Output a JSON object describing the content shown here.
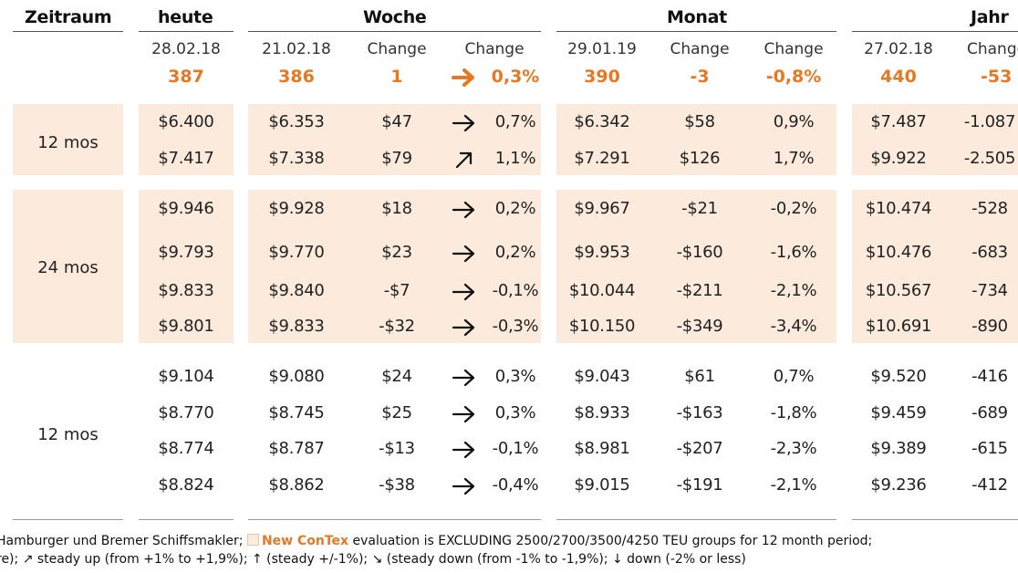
{
  "headers": {
    "zeitraum": "Zeitraum",
    "heute": "heute",
    "woche": "Woche",
    "monat": "Monat",
    "jahr": "Jahr"
  },
  "subheaders": {
    "heute_date": "28.02.18",
    "woche_date": "21.02.18",
    "woche_change1": "Change",
    "woche_change2": "Change",
    "monat_date": "29.01.19",
    "monat_change1": "Change",
    "monat_change2": "Change",
    "jahr_date": "27.02.18",
    "jahr_change1": "Change"
  },
  "index_row": {
    "heute": "387",
    "woche": "386",
    "woche_change": "1",
    "woche_pct": "0,3%",
    "monat": "390",
    "monat_change": "-3",
    "monat_pct": "-0,8%",
    "jahr": "440",
    "jahr_change": "-53"
  },
  "groups": [
    {
      "label": "12 mos",
      "rows": [
        {
          "heute": "$6.400",
          "woche": "$6.353",
          "wchg": "$47",
          "arrow": "right",
          "wpct": "0,7%",
          "monat": "$6.342",
          "mchg": "$58",
          "mpct": "0,9%",
          "jahr": "$7.487",
          "jchg": "-1.087"
        },
        {
          "heute": "$7.417",
          "woche": "$7.338",
          "wchg": "$79",
          "arrow": "up-right",
          "wpct": "1,1%",
          "monat": "$7.291",
          "mchg": "$126",
          "mpct": "1,7%",
          "jahr": "$9.922",
          "jchg": "-2.505"
        }
      ]
    },
    {
      "label": "24 mos",
      "rows": [
        {
          "heute": "$9.946",
          "woche": "$9.928",
          "wchg": "$18",
          "arrow": "right",
          "wpct": "0,2%",
          "monat": "$9.967",
          "mchg": "-$21",
          "mpct": "-0,2%",
          "jahr": "$10.474",
          "jchg": "-528"
        },
        {
          "heute": "$9.793",
          "woche": "$9.770",
          "wchg": "$23",
          "arrow": "right",
          "wpct": "0,2%",
          "monat": "$9.953",
          "mchg": "-$160",
          "mpct": "-1,6%",
          "jahr": "$10.476",
          "jchg": "-683"
        },
        {
          "heute": "$9.833",
          "woche": "$9.840",
          "wchg": "-$7",
          "arrow": "right",
          "wpct": "-0,1%",
          "monat": "$10.044",
          "mchg": "-$211",
          "mpct": "-2,1%",
          "jahr": "$10.567",
          "jchg": "-734"
        },
        {
          "heute": "$9.801",
          "woche": "$9.833",
          "wchg": "-$32",
          "arrow": "right",
          "wpct": "-0,3%",
          "monat": "$10.150",
          "mchg": "-$349",
          "mpct": "-3,4%",
          "jahr": "$10.691",
          "jchg": "-890"
        }
      ]
    },
    {
      "label": "12 mos",
      "rows": [
        {
          "heute": "$9.104",
          "woche": "$9.080",
          "wchg": "$24",
          "arrow": "right",
          "wpct": "0,3%",
          "monat": "$9.043",
          "mchg": "$61",
          "mpct": "0,7%",
          "jahr": "$9.520",
          "jchg": "-416"
        },
        {
          "heute": "$8.770",
          "woche": "$8.745",
          "wchg": "$25",
          "arrow": "right",
          "wpct": "0,3%",
          "monat": "$8.933",
          "mchg": "-$163",
          "mpct": "-1,8%",
          "jahr": "$9.459",
          "jchg": "-689"
        },
        {
          "heute": "$8.774",
          "woche": "$8.787",
          "wchg": "-$13",
          "arrow": "right",
          "wpct": "-0,1%",
          "monat": "$8.981",
          "mchg": "-$207",
          "mpct": "-2,3%",
          "jahr": "$9.389",
          "jchg": "-615"
        },
        {
          "heute": "$8.824",
          "woche": "$8.862",
          "wchg": "-$38",
          "arrow": "right",
          "wpct": "-0,4%",
          "monat": "$9.015",
          "mchg": "-$191",
          "mpct": "-2,1%",
          "jahr": "$9.236",
          "jchg": "-412"
        }
      ]
    }
  ],
  "footer": {
    "line1_pre": "Hamburger und Bremer Schiffsmakler;",
    "line1_brand": "New ConTex",
    "line1_post": " evaluation is EXCLUDING 2500/2700/3500/4250 TEU groups for 12 month period;",
    "line2": "re); ↗ steady up (from +1% to +1,9%); ↑ (steady +/-1%); ↘ (steady down (from -1% to -1,9%); ↓ down (-2% or less)"
  },
  "colors": {
    "accent": "#e87722",
    "shade": "#fcebdc"
  }
}
